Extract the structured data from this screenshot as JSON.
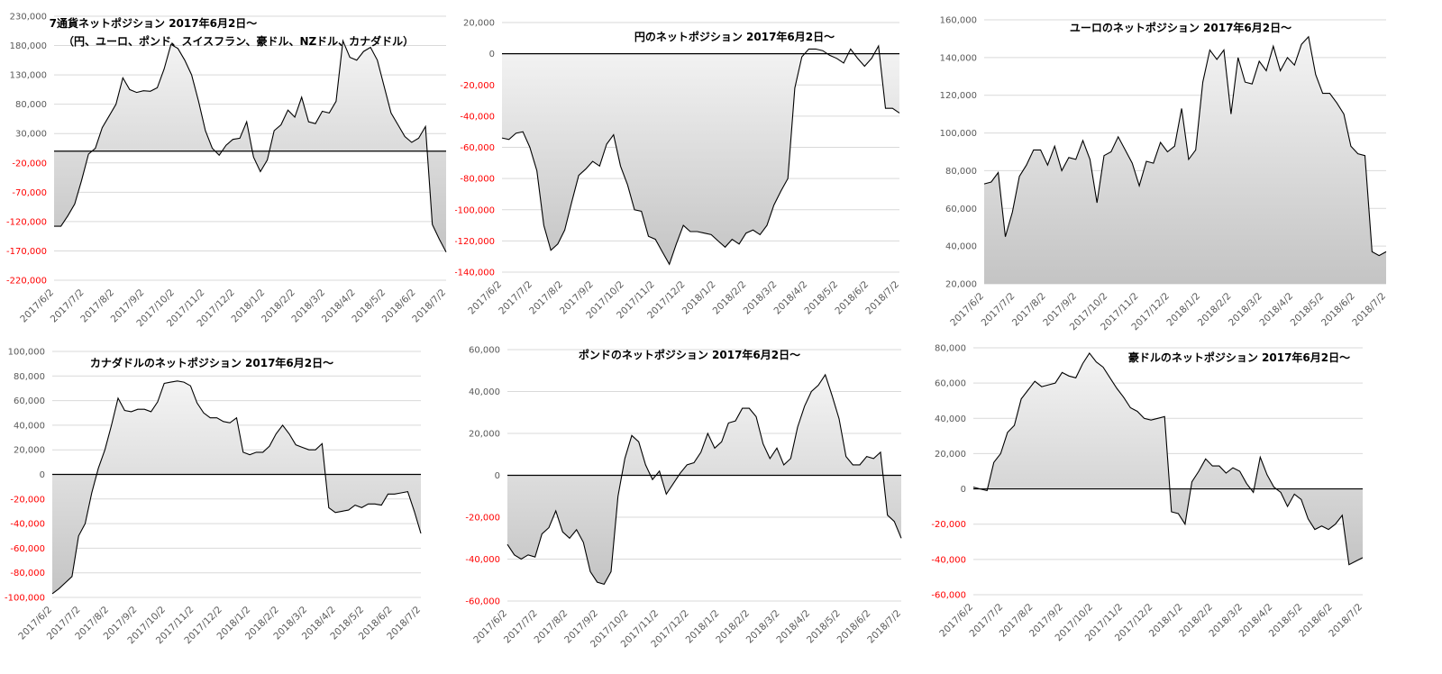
{
  "chart_data": [
    {
      "type": "area",
      "title": "7通貨ネットポジション 2017年6月2日～",
      "subtitle": "（円、ユーロ、ポンド、スイスフラン、豪ドル、NZドル、カナダドル）",
      "ylim": [
        -220000,
        230000
      ],
      "yticks": [
        230000,
        180000,
        130000,
        80000,
        30000,
        -20000,
        -70000,
        -120000,
        -170000,
        -220000
      ],
      "ytick_labels": [
        "230,000",
        "180,000",
        "130,000",
        "80,000",
        "30,000",
        "-20,000",
        "-70,000",
        "-120,000",
        "-170,000",
        "-220,000"
      ],
      "negative_tick_color": "#ff0000",
      "xticks": [
        "2017/6/2",
        "2017/7/2",
        "2017/8/2",
        "2017/9/2",
        "2017/10/2",
        "2017/11/2",
        "2017/12/2",
        "2018/1/2",
        "2018/2/2",
        "2018/3/2",
        "2018/4/2",
        "2018/5/2",
        "2018/6/2",
        "2018/7/2"
      ],
      "grid": true,
      "values": [
        -128000,
        -128000,
        -110000,
        -90000,
        -50000,
        -5000,
        5000,
        40000,
        60000,
        80000,
        125000,
        105000,
        100000,
        103000,
        102000,
        108000,
        140000,
        182000,
        175000,
        155000,
        130000,
        85000,
        35000,
        5000,
        -7000,
        10000,
        20000,
        22000,
        50000,
        -10000,
        -35000,
        -15000,
        35000,
        45000,
        70000,
        58000,
        92000,
        50000,
        47000,
        68000,
        65000,
        85000,
        188000,
        160000,
        155000,
        170000,
        177000,
        155000,
        110000,
        65000,
        45000,
        25000,
        15000,
        22000,
        42000,
        -125000,
        -150000,
        -172000
      ]
    },
    {
      "type": "area",
      "title": "円のネットポジション 2017年6月2日～",
      "ylim": [
        -140000,
        20000
      ],
      "yticks": [
        20000,
        0,
        -20000,
        -40000,
        -60000,
        -80000,
        -100000,
        -120000,
        -140000
      ],
      "ytick_labels": [
        "20,000",
        "0",
        "-20,000",
        "-40,000",
        "-60,000",
        "-80,000",
        "-100,000",
        "-120,000",
        "-140,000"
      ],
      "negative_tick_color": "#ff0000",
      "xticks": [
        "2017/6/2",
        "2017/7/2",
        "2017/8/2",
        "2017/9/2",
        "2017/10/2",
        "2017/11/2",
        "2017/12/2",
        "2018/1/2",
        "2018/2/2",
        "2018/3/2",
        "2018/4/2",
        "2018/5/2",
        "2018/6/2",
        "2018/7/2"
      ],
      "grid": true,
      "values": [
        -54000,
        -55000,
        -51000,
        -50000,
        -60000,
        -75000,
        -110000,
        -126000,
        -122000,
        -113000,
        -95000,
        -78000,
        -74000,
        -69000,
        -72000,
        -58000,
        -52000,
        -72000,
        -84000,
        -100000,
        -101000,
        -117000,
        -119000,
        -127000,
        -135000,
        -122000,
        -110000,
        -114000,
        -114000,
        -115000,
        -116000,
        -120000,
        -124000,
        -119000,
        -122000,
        -115000,
        -113000,
        -116000,
        -110000,
        -97000,
        -88000,
        -80000,
        -22000,
        -2000,
        3000,
        3000,
        2000,
        -1000,
        -3000,
        -6000,
        3000,
        -3000,
        -8000,
        -3000,
        5000,
        -35000,
        -35000,
        -38000
      ]
    },
    {
      "type": "area",
      "title": "ユーロのネットポジション 2017年6月2日～",
      "ylim": [
        20000,
        160000
      ],
      "yticks": [
        160000,
        140000,
        120000,
        100000,
        80000,
        60000,
        40000,
        20000
      ],
      "ytick_labels": [
        "160,000",
        "140,000",
        "120,000",
        "100,000",
        "80,000",
        "60,000",
        "40,000",
        "20,000"
      ],
      "xticks": [
        "2017/6/2",
        "2017/7/2",
        "2017/8/2",
        "2017/9/2",
        "2017/10/2",
        "2017/11/2",
        "2017/12/2",
        "2018/1/2",
        "2018/2/2",
        "2018/3/2",
        "2018/4/2",
        "2018/5/2",
        "2018/6/2",
        "2018/7/2"
      ],
      "grid": true,
      "values": [
        73000,
        74000,
        79000,
        45000,
        58000,
        77000,
        83000,
        91000,
        91000,
        83000,
        93000,
        80000,
        87000,
        86000,
        96000,
        86000,
        63000,
        88000,
        90000,
        98000,
        91000,
        84000,
        72000,
        85000,
        84000,
        95000,
        90000,
        93000,
        113000,
        86000,
        91000,
        127000,
        144000,
        139000,
        144000,
        110000,
        140000,
        127000,
        126000,
        138000,
        133000,
        146000,
        133000,
        140000,
        136000,
        147000,
        151000,
        131000,
        121000,
        121000,
        116000,
        110000,
        93000,
        89000,
        88000,
        37000,
        35000,
        37000
      ]
    },
    {
      "type": "area",
      "title": "カナダドルのネットポジション 2017年6月2日～",
      "ylim": [
        -100000,
        100000
      ],
      "yticks": [
        100000,
        80000,
        60000,
        40000,
        20000,
        0,
        -20000,
        -40000,
        -60000,
        -80000,
        -100000
      ],
      "ytick_labels": [
        "100,000",
        "80,000",
        "60,000",
        "40,000",
        "20,000",
        "0",
        "-20,000",
        "-40,000",
        "-60,000",
        "-80,000",
        "-100,000"
      ],
      "negative_tick_color": "#ff0000",
      "xticks": [
        "2017/6/2",
        "2017/7/2",
        "2017/8/2",
        "2017/9/2",
        "2017/10/2",
        "2017/11/2",
        "2017/12/2",
        "2018/1/2",
        "2018/2/2",
        "2018/3/2",
        "2018/4/2",
        "2018/5/2",
        "2018/6/2",
        "2018/7/2"
      ],
      "grid": true,
      "values": [
        -97000,
        -93000,
        -88000,
        -83000,
        -50000,
        -40000,
        -15000,
        5000,
        20000,
        40000,
        62000,
        52000,
        51000,
        53000,
        53000,
        51000,
        59000,
        74000,
        75000,
        76000,
        75000,
        72000,
        58000,
        50000,
        46000,
        46000,
        43000,
        42000,
        46000,
        18000,
        16000,
        18000,
        18000,
        23000,
        33000,
        40000,
        33000,
        24000,
        22000,
        20000,
        20000,
        25000,
        -27000,
        -31000,
        -30000,
        -29000,
        -25000,
        -27000,
        -24000,
        -24000,
        -25000,
        -16000,
        -16000,
        -15000,
        -14000,
        -30000,
        -48000
      ]
    },
    {
      "type": "area",
      "title": "ポンドのネットポジション 2017年6月2日～",
      "ylim": [
        -60000,
        60000
      ],
      "yticks": [
        60000,
        40000,
        20000,
        0,
        -20000,
        -40000,
        -60000
      ],
      "ytick_labels": [
        "60,000",
        "40,000",
        "20,000",
        "0",
        "-20,000",
        "-40,000",
        "-60,000"
      ],
      "negative_tick_color": "#ff0000",
      "xticks": [
        "2017/6/2",
        "2017/7/2",
        "2017/8/2",
        "2017/9/2",
        "2017/10/2",
        "2017/11/2",
        "2017/12/2",
        "2018/1/2",
        "2018/2/2",
        "2018/3/2",
        "2018/4/2",
        "2018/5/2",
        "2018/6/2",
        "2018/7/2"
      ],
      "grid": true,
      "values": [
        -33000,
        -38000,
        -40000,
        -38000,
        -39000,
        -28000,
        -25000,
        -17000,
        -27000,
        -30000,
        -26000,
        -32000,
        -46000,
        -51000,
        -52000,
        -46000,
        -10000,
        8000,
        19000,
        16000,
        5000,
        -2000,
        2000,
        -9000,
        -4000,
        1000,
        5000,
        6000,
        11000,
        20000,
        13000,
        16000,
        25000,
        26000,
        32000,
        32000,
        28000,
        15000,
        8000,
        13000,
        5000,
        8000,
        23000,
        33000,
        40000,
        43000,
        48000,
        38000,
        27000,
        9000,
        5000,
        5000,
        9000,
        8000,
        11000,
        -19000,
        -22000,
        -30000
      ]
    },
    {
      "type": "area",
      "title": "豪ドルのネットポジション 2017年6月2日～",
      "ylim": [
        -60000,
        80000
      ],
      "yticks": [
        80000,
        60000,
        40000,
        20000,
        0,
        -20000,
        -40000,
        -60000
      ],
      "ytick_labels": [
        "80,000",
        "60,000",
        "40,000",
        "20,000",
        "0",
        "-20,000",
        "-40,000",
        "-60,000"
      ],
      "negative_tick_color": "#ff0000",
      "xticks": [
        "2017/6/2",
        "2017/7/2",
        "2017/8/2",
        "2017/9/2",
        "2017/10/2",
        "2017/11/2",
        "2017/12/2",
        "2018/1/2",
        "2018/2/2",
        "2018/3/2",
        "2018/4/2",
        "2018/5/2",
        "2018/6/2",
        "2018/7/2"
      ],
      "grid": true,
      "values": [
        1000,
        0,
        -1000,
        15000,
        20000,
        32000,
        36000,
        51000,
        56000,
        61000,
        58000,
        59000,
        60000,
        66000,
        64000,
        63000,
        71000,
        77000,
        72000,
        69000,
        63000,
        57000,
        52000,
        46000,
        44000,
        40000,
        39000,
        40000,
        41000,
        -13000,
        -14000,
        -20000,
        4000,
        10000,
        17000,
        13000,
        13000,
        9000,
        12000,
        10000,
        3000,
        -2000,
        18000,
        8000,
        1000,
        -2000,
        -10000,
        -3000,
        -6000,
        -17000,
        -23000,
        -21000,
        -23000,
        -20000,
        -15000,
        -43000,
        -41000,
        -39000
      ]
    }
  ]
}
